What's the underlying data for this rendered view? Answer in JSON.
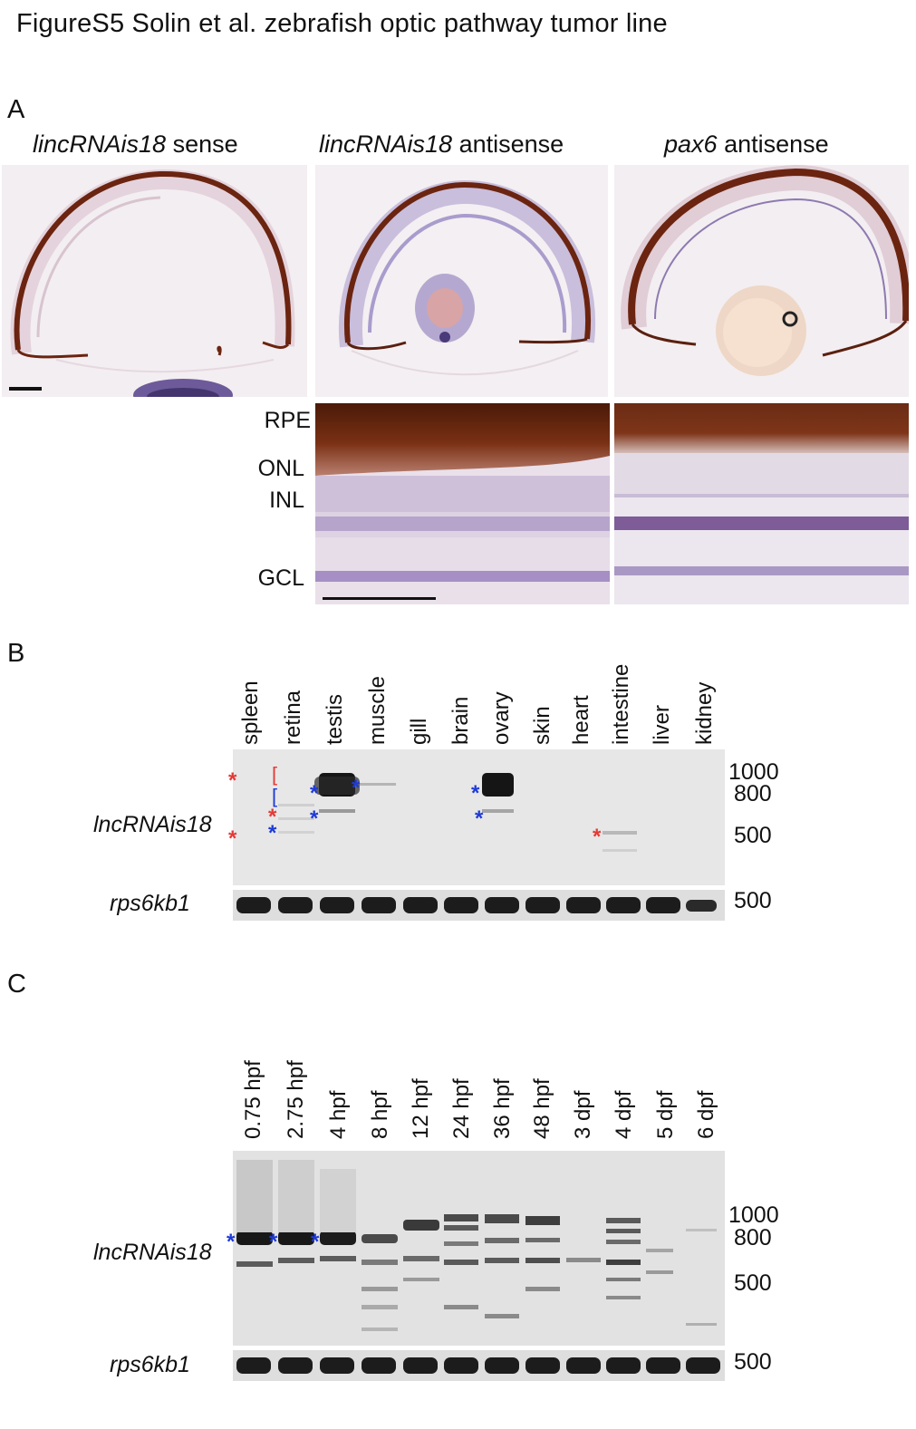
{
  "figure_title": "FigureS5 Solin et al. zebrafish optic pathway tumor line",
  "panel_a": {
    "letter": "A",
    "headers": [
      {
        "gene": "lincRNAis18",
        "suffix": " sense"
      },
      {
        "gene": "lincRNAis18",
        "suffix": " antisense"
      },
      {
        "gene": "pax6",
        "suffix": " antisense"
      }
    ],
    "layers": [
      "RPE",
      "ONL",
      "INL",
      "GCL"
    ]
  },
  "panel_b": {
    "letter": "B",
    "lanes": [
      "spleen",
      "retina",
      "testis",
      "muscle",
      "gill",
      "brain",
      "ovary",
      "skin",
      "heart",
      "intestine",
      "liver",
      "kidney"
    ],
    "gene_top": "lncRNAis18",
    "gene_bottom": "rps6kb1",
    "markers_top": [
      "1000",
      "800",
      "500"
    ],
    "marker_bottom": "500",
    "asterisk": "*",
    "bracket": "["
  },
  "panel_c": {
    "letter": "C",
    "lanes": [
      "0.75 hpf",
      "2.75 hpf",
      "4 hpf",
      "8 hpf",
      "12 hpf",
      "24 hpf",
      "36 hpf",
      "48 hpf",
      "3 dpf",
      "4 dpf",
      "5 dpf",
      "6 dpf"
    ],
    "gene_top": "lncRNAis18",
    "gene_bottom": "rps6kb1",
    "markers_top": [
      "1000",
      "800",
      "500"
    ],
    "marker_bottom": "500",
    "asterisk": "*"
  },
  "colors": {
    "pigment": "#6b2410",
    "pigment_light": "#9a4a2a",
    "stain_purple": "#7a5a9c",
    "tissue_bg": "#ece4ea",
    "gel_bg": "#e6e6e6",
    "band_dark": "#1a1a1a",
    "asterisk_red": "#e53935",
    "asterisk_blue": "#1e3ad6"
  }
}
